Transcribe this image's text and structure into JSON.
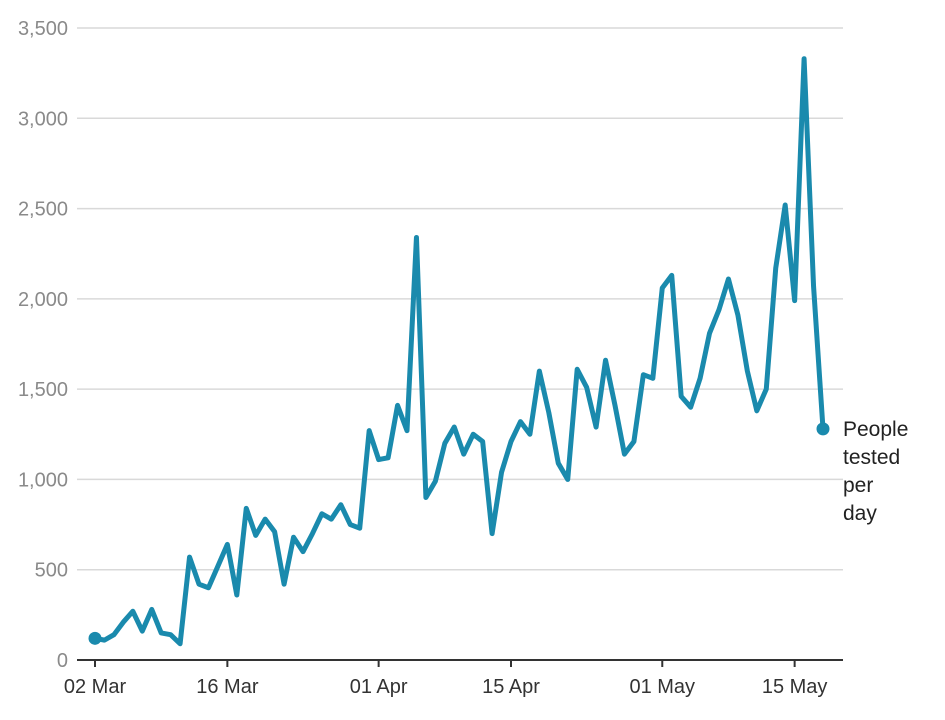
{
  "chart_data": {
    "type": "line",
    "title": "",
    "xlabel": "",
    "ylabel": "",
    "ylim": [
      0,
      3500
    ],
    "yticks": [
      0,
      500,
      1000,
      1500,
      2000,
      2500,
      3000,
      3500
    ],
    "ytick_labels": [
      "0",
      "500",
      "1,000",
      "1,500",
      "2,000",
      "2,500",
      "3,000",
      "3,500"
    ],
    "xticks": [
      {
        "label": "02 Mar",
        "index": 0
      },
      {
        "label": "16 Mar",
        "index": 14
      },
      {
        "label": "01 Apr",
        "index": 30
      },
      {
        "label": "15 Apr",
        "index": 44
      },
      {
        "label": "01 May",
        "index": 60
      },
      {
        "label": "15 May",
        "index": 74
      }
    ],
    "grid": true,
    "colors": {
      "line": "#1a8aad",
      "grid": "#d9d9d9",
      "axis": "#333333"
    },
    "series": [
      {
        "name": "People tested per day",
        "label_lines": [
          "People",
          "tested",
          "per",
          "day"
        ],
        "x": [
          "02 Mar",
          "03 Mar",
          "04 Mar",
          "05 Mar",
          "06 Mar",
          "07 Mar",
          "08 Mar",
          "09 Mar",
          "10 Mar",
          "11 Mar",
          "12 Mar",
          "13 Mar",
          "14 Mar",
          "15 Mar",
          "16 Mar",
          "17 Mar",
          "18 Mar",
          "19 Mar",
          "20 Mar",
          "21 Mar",
          "22 Mar",
          "23 Mar",
          "24 Mar",
          "25 Mar",
          "26 Mar",
          "27 Mar",
          "28 Mar",
          "29 Mar",
          "30 Mar",
          "31 Mar",
          "01 Apr",
          "02 Apr",
          "03 Apr",
          "04 Apr",
          "05 Apr",
          "06 Apr",
          "07 Apr",
          "08 Apr",
          "09 Apr",
          "10 Apr",
          "11 Apr",
          "12 Apr",
          "13 Apr",
          "14 Apr",
          "15 Apr",
          "16 Apr",
          "17 Apr",
          "18 Apr",
          "19 Apr",
          "20 Apr",
          "21 Apr",
          "22 Apr",
          "23 Apr",
          "24 Apr",
          "25 Apr",
          "26 Apr",
          "27 Apr",
          "28 Apr",
          "29 Apr",
          "30 Apr",
          "01 May",
          "02 May",
          "03 May",
          "04 May",
          "05 May",
          "06 May",
          "07 May",
          "08 May",
          "09 May",
          "10 May",
          "11 May",
          "12 May",
          "13 May",
          "14 May",
          "15 May",
          "16 May",
          "17 May",
          "18 May"
        ],
        "values": [
          120,
          110,
          140,
          210,
          270,
          160,
          280,
          150,
          140,
          90,
          570,
          420,
          400,
          520,
          640,
          360,
          840,
          690,
          780,
          710,
          420,
          680,
          600,
          700,
          810,
          780,
          860,
          750,
          730,
          1270,
          1110,
          1120,
          1410,
          1270,
          2340,
          900,
          990,
          1200,
          1290,
          1140,
          1250,
          1210,
          700,
          1040,
          1210,
          1320,
          1250,
          1600,
          1370,
          1090,
          1000,
          1610,
          1510,
          1290,
          1660,
          1410,
          1140,
          1210,
          1580,
          1560,
          2060,
          2130,
          1460,
          1400,
          1560,
          1810,
          1940,
          2110,
          1910,
          1600,
          1380,
          1500,
          2170,
          2520,
          1990,
          3330,
          2070,
          1280
        ]
      }
    ]
  }
}
